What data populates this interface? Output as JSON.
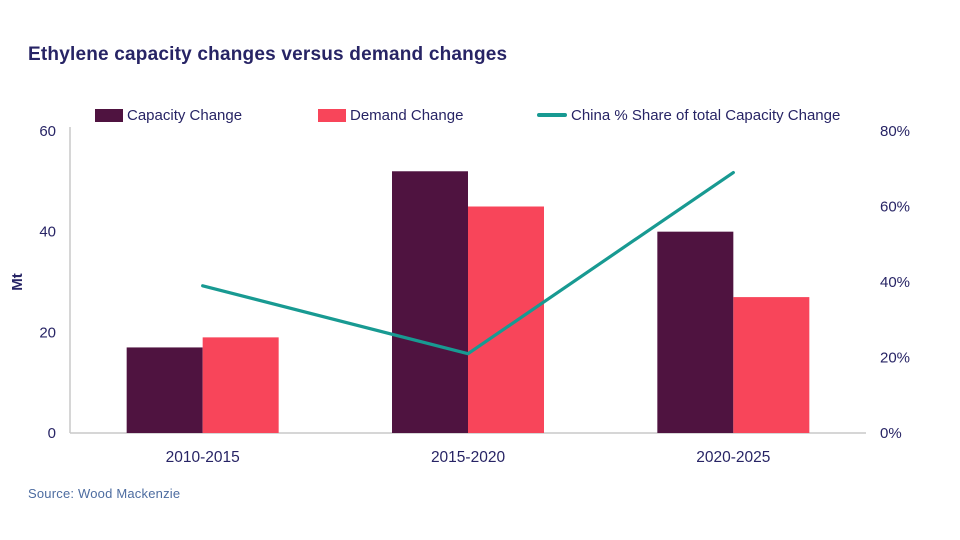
{
  "title": "Ethylene capacity changes versus demand changes",
  "source": "Source: Wood Mackenzie",
  "legend": [
    {
      "label": "Capacity Change",
      "marker": "swatch",
      "color": "#4F1340"
    },
    {
      "label": "Demand Change",
      "marker": "swatch",
      "color": "#F8455A"
    },
    {
      "label": "China % Share of total Capacity Change",
      "marker": "line",
      "color": "#189A92"
    }
  ],
  "colors": {
    "text_navy": "#272465",
    "capacity_bar": "#4F1340",
    "demand_bar": "#F8455A",
    "china_line": "#189A92",
    "axis_gray": "#C9C9C9",
    "source_text": "#4D6CA0"
  },
  "chart_data": {
    "type": "bar",
    "subtype": "grouped-bars-with-line",
    "title": "Ethylene capacity changes versus demand changes",
    "categories": [
      "2010-2015",
      "2015-2020",
      "2020-2025"
    ],
    "series": [
      {
        "name": "Capacity Change",
        "kind": "bar",
        "axis": "left",
        "color": "#4F1340",
        "values": [
          17,
          52,
          40
        ]
      },
      {
        "name": "Demand Change",
        "kind": "bar",
        "axis": "left",
        "color": "#F8455A",
        "values": [
          19,
          45,
          27
        ]
      },
      {
        "name": "China % Share of total Capacity Change",
        "kind": "line",
        "axis": "right",
        "color": "#189A92",
        "values": [
          39,
          21,
          69
        ]
      }
    ],
    "left_axis": {
      "label": "Mt",
      "min": 0,
      "max": 60,
      "tick_values": [
        0,
        20,
        40,
        60
      ],
      "tick_labels": [
        "0",
        "20",
        "40",
        "60"
      ]
    },
    "right_axis": {
      "label": "",
      "min": 0,
      "max": 80,
      "tick_values": [
        0,
        20,
        40,
        60,
        80
      ],
      "tick_labels": [
        "0%",
        "20%",
        "40%",
        "60%",
        "80%"
      ]
    },
    "grid": false,
    "legend_position": "top"
  }
}
